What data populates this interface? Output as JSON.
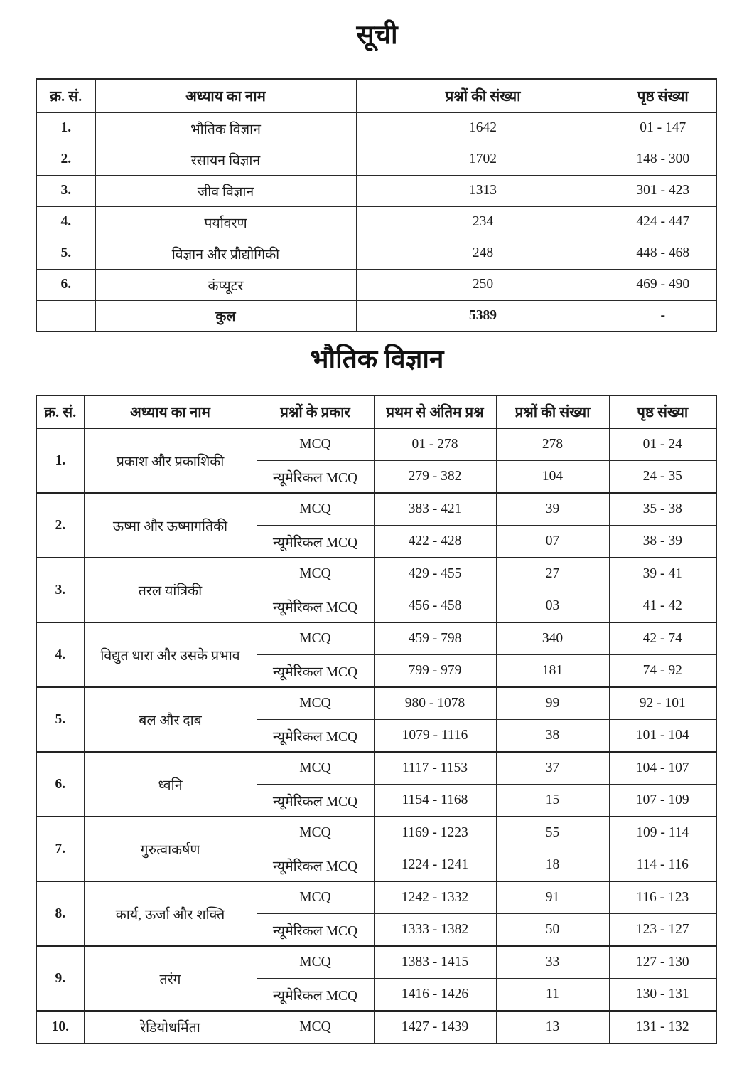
{
  "page": {
    "title": "सूची",
    "physics_section_title": "भौतिक विज्ञान"
  },
  "colors": {
    "background": "#ffffff",
    "ink": "#1b1b1b",
    "border": "#2a2a2a"
  },
  "toc_table": {
    "headers": [
      "क्र. सं.",
      "अध्याय का नाम",
      "प्रश्नों की संख्या",
      "पृष्ठ संख्या"
    ],
    "rows": [
      {
        "sno": "1.",
        "name": "भौतिक विज्ञान",
        "questions": "1642",
        "pages": "01 - 147"
      },
      {
        "sno": "2.",
        "name": "रसायन विज्ञान",
        "questions": "1702",
        "pages": "148 - 300"
      },
      {
        "sno": "3.",
        "name": "जीव विज्ञान",
        "questions": "1313",
        "pages": "301 - 423"
      },
      {
        "sno": "4.",
        "name": "पर्यावरण",
        "questions": "234",
        "pages": "424 - 447"
      },
      {
        "sno": "5.",
        "name": "विज्ञान और प्रौद्योगिकी",
        "questions": "248",
        "pages": "448 - 468"
      },
      {
        "sno": "6.",
        "name": "कंप्यूटर",
        "questions": "250",
        "pages": "469 - 490"
      }
    ],
    "total": {
      "label": "कुल",
      "questions": "5389",
      "pages": "-"
    }
  },
  "physics_table": {
    "headers": [
      "क्र. सं.",
      "अध्याय का नाम",
      "प्रश्नों के प्रकार",
      "प्रथम से अंतिम प्रश्न",
      "प्रश्नों की संख्या",
      "पृष्ठ संख्या"
    ],
    "groups": [
      {
        "sno": "1.",
        "name": "प्रकाश और प्रकाशिकी",
        "rows": [
          {
            "type": "MCQ",
            "range": "01 - 278",
            "count": "278",
            "pages": "01 - 24"
          },
          {
            "type": "न्यूमेरिकल MCQ",
            "range": "279 - 382",
            "count": "104",
            "pages": "24 - 35"
          }
        ]
      },
      {
        "sno": "2.",
        "name": "ऊष्मा और ऊष्मागतिकी",
        "rows": [
          {
            "type": "MCQ",
            "range": "383 - 421",
            "count": "39",
            "pages": "35 - 38"
          },
          {
            "type": "न्यूमेरिकल MCQ",
            "range": "422 - 428",
            "count": "07",
            "pages": "38 - 39"
          }
        ]
      },
      {
        "sno": "3.",
        "name": "तरल यांत्रिकी",
        "rows": [
          {
            "type": "MCQ",
            "range": "429 - 455",
            "count": "27",
            "pages": "39 - 41"
          },
          {
            "type": "न्यूमेरिकल MCQ",
            "range": "456 - 458",
            "count": "03",
            "pages": "41 - 42"
          }
        ]
      },
      {
        "sno": "4.",
        "name": "विद्युत धारा और उसके प्रभाव",
        "rows": [
          {
            "type": "MCQ",
            "range": "459 - 798",
            "count": "340",
            "pages": "42 - 74"
          },
          {
            "type": "न्यूमेरिकल MCQ",
            "range": "799 - 979",
            "count": "181",
            "pages": "74 - 92"
          }
        ]
      },
      {
        "sno": "5.",
        "name": "बल और दाब",
        "rows": [
          {
            "type": "MCQ",
            "range": "980 - 1078",
            "count": "99",
            "pages": "92 - 101"
          },
          {
            "type": "न्यूमेरिकल MCQ",
            "range": "1079 - 1116",
            "count": "38",
            "pages": "101 - 104"
          }
        ]
      },
      {
        "sno": "6.",
        "name": "ध्वनि",
        "rows": [
          {
            "type": "MCQ",
            "range": "1117 - 1153",
            "count": "37",
            "pages": "104 - 107"
          },
          {
            "type": "न्यूमेरिकल MCQ",
            "range": "1154 - 1168",
            "count": "15",
            "pages": "107 - 109"
          }
        ]
      },
      {
        "sno": "7.",
        "name": "गुरुत्वाकर्षण",
        "rows": [
          {
            "type": "MCQ",
            "range": "1169 - 1223",
            "count": "55",
            "pages": "109 - 114"
          },
          {
            "type": "न्यूमेरिकल MCQ",
            "range": "1224 - 1241",
            "count": "18",
            "pages": "114 - 116"
          }
        ]
      },
      {
        "sno": "8.",
        "name": "कार्य, ऊर्जा और शक्ति",
        "rows": [
          {
            "type": "MCQ",
            "range": "1242 - 1332",
            "count": "91",
            "pages": "116 - 123"
          },
          {
            "type": "न्यूमेरिकल MCQ",
            "range": "1333 - 1382",
            "count": "50",
            "pages": "123 - 127"
          }
        ]
      },
      {
        "sno": "9.",
        "name": "तरंग",
        "rows": [
          {
            "type": "MCQ",
            "range": "1383 - 1415",
            "count": "33",
            "pages": "127 - 130"
          },
          {
            "type": "न्यूमेरिकल MCQ",
            "range": "1416 - 1426",
            "count": "11",
            "pages": "130 - 131"
          }
        ]
      },
      {
        "sno": "10.",
        "name": "रेडियोधर्मिता",
        "rows": [
          {
            "type": "MCQ",
            "range": "1427 - 1439",
            "count": "13",
            "pages": "131 - 132"
          }
        ]
      }
    ]
  }
}
